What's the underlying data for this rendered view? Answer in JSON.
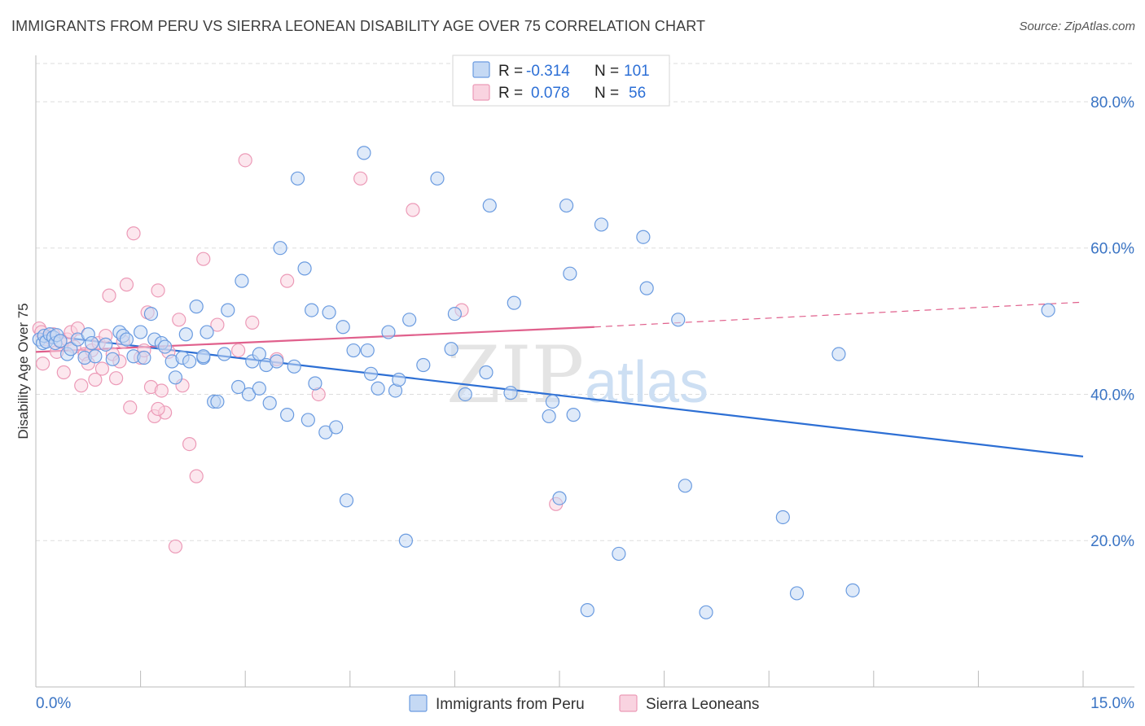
{
  "title": "IMMIGRANTS FROM PERU VS SIERRA LEONEAN DISABILITY AGE OVER 75 CORRELATION CHART",
  "source": "Source: ZipAtlas.com",
  "watermark": {
    "zip": "ZIP",
    "atlas": "atlas"
  },
  "legend": {
    "rows": [
      {
        "r_label": "R =",
        "r_value": "-0.314",
        "n_label": "N =",
        "n_value": "101"
      },
      {
        "r_label": "R =",
        "r_value": "0.078",
        "n_label": "N =",
        "n_value": "56"
      }
    ]
  },
  "colors": {
    "blue": "#6a9be0",
    "blue_fill": "#c5d9f4",
    "blue_line": "#2d6fd4",
    "pink": "#ec9ab7",
    "pink_fill": "#f9d3e0",
    "pink_line": "#e0608c",
    "axis_text": "#3a74c4",
    "grid": "#dddddd"
  },
  "chart_data": {
    "type": "scatter",
    "title": "IMMIGRANTS FROM PERU VS SIERRA LEONEAN DISABILITY AGE OVER 75 CORRELATION CHART",
    "xlabel": "",
    "ylabel": "Disability Age Over 75",
    "xlim": [
      0,
      15
    ],
    "ylim": [
      0,
      85
    ],
    "x_tick_labels": [
      "0.0%",
      "15.0%"
    ],
    "y_ticks": [
      20,
      40,
      60,
      80
    ],
    "y_tick_labels": [
      "20.0%",
      "40.0%",
      "60.0%",
      "80.0%"
    ],
    "grid": true,
    "legend_position": "top-center",
    "series": [
      {
        "name": "Immigrants from Peru",
        "color": "#6a9be0",
        "points": [
          [
            0.05,
            47.5
          ],
          [
            0.1,
            47.0
          ],
          [
            0.12,
            48.0
          ],
          [
            0.15,
            47.2
          ],
          [
            0.2,
            48.2
          ],
          [
            0.25,
            47.8
          ],
          [
            0.28,
            47.0
          ],
          [
            0.3,
            48.1
          ],
          [
            0.35,
            47.3
          ],
          [
            0.45,
            45.5
          ],
          [
            0.5,
            46.2
          ],
          [
            0.6,
            47.5
          ],
          [
            0.7,
            45.0
          ],
          [
            0.75,
            48.2
          ],
          [
            0.8,
            47.0
          ],
          [
            0.85,
            45.2
          ],
          [
            1.0,
            46.8
          ],
          [
            1.1,
            44.8
          ],
          [
            1.2,
            48.5
          ],
          [
            1.25,
            48.0
          ],
          [
            1.3,
            47.5
          ],
          [
            1.4,
            45.2
          ],
          [
            1.5,
            48.5
          ],
          [
            1.55,
            45.0
          ],
          [
            1.65,
            51.0
          ],
          [
            1.7,
            47.5
          ],
          [
            1.8,
            47.0
          ],
          [
            1.85,
            46.5
          ],
          [
            1.95,
            44.5
          ],
          [
            2.0,
            42.3
          ],
          [
            2.1,
            45.0
          ],
          [
            2.15,
            48.2
          ],
          [
            2.2,
            44.5
          ],
          [
            2.3,
            52.0
          ],
          [
            2.4,
            45.0
          ],
          [
            2.45,
            48.5
          ],
          [
            2.55,
            39.0
          ],
          [
            2.6,
            39.0
          ],
          [
            2.7,
            45.5
          ],
          [
            2.75,
            51.5
          ],
          [
            2.9,
            41.0
          ],
          [
            2.95,
            55.5
          ],
          [
            3.05,
            40.0
          ],
          [
            3.1,
            44.5
          ],
          [
            3.2,
            45.5
          ],
          [
            3.3,
            44.0
          ],
          [
            3.35,
            38.8
          ],
          [
            3.45,
            44.5
          ],
          [
            3.5,
            60.0
          ],
          [
            3.6,
            37.2
          ],
          [
            3.7,
            43.8
          ],
          [
            3.75,
            69.5
          ],
          [
            3.85,
            57.2
          ],
          [
            3.9,
            36.5
          ],
          [
            3.95,
            51.5
          ],
          [
            4.0,
            41.5
          ],
          [
            4.15,
            34.8
          ],
          [
            4.2,
            51.2
          ],
          [
            4.3,
            35.5
          ],
          [
            4.4,
            49.2
          ],
          [
            4.45,
            25.5
          ],
          [
            4.55,
            46.0
          ],
          [
            4.7,
            73.0
          ],
          [
            4.75,
            46.0
          ],
          [
            4.8,
            42.8
          ],
          [
            4.9,
            40.8
          ],
          [
            5.05,
            48.5
          ],
          [
            5.15,
            40.5
          ],
          [
            5.2,
            42.0
          ],
          [
            5.3,
            20.0
          ],
          [
            5.35,
            50.2
          ],
          [
            5.55,
            44.0
          ],
          [
            5.75,
            69.5
          ],
          [
            5.95,
            46.2
          ],
          [
            6.0,
            51.0
          ],
          [
            6.15,
            40.0
          ],
          [
            6.45,
            43.0
          ],
          [
            6.5,
            65.8
          ],
          [
            6.8,
            40.2
          ],
          [
            6.85,
            52.5
          ],
          [
            7.35,
            37.0
          ],
          [
            7.4,
            39.0
          ],
          [
            7.5,
            25.8
          ],
          [
            7.6,
            65.8
          ],
          [
            7.65,
            56.5
          ],
          [
            7.7,
            37.2
          ],
          [
            7.9,
            10.5
          ],
          [
            8.1,
            63.2
          ],
          [
            8.35,
            18.2
          ],
          [
            8.7,
            61.5
          ],
          [
            8.75,
            54.5
          ],
          [
            9.2,
            50.2
          ],
          [
            9.3,
            27.5
          ],
          [
            9.6,
            10.2
          ],
          [
            10.7,
            23.2
          ],
          [
            10.9,
            12.8
          ],
          [
            11.5,
            45.5
          ],
          [
            11.7,
            13.2
          ],
          [
            14.5,
            51.5
          ],
          [
            2.4,
            45.2
          ],
          [
            3.2,
            40.8
          ]
        ],
        "trend": [
          [
            0,
            48.2
          ],
          [
            15,
            31.5
          ]
        ]
      },
      {
        "name": "Sierra Leoneans",
        "color": "#ec9ab7",
        "points": [
          [
            0.05,
            49.0
          ],
          [
            0.08,
            48.5
          ],
          [
            0.1,
            44.2
          ],
          [
            0.15,
            47.5
          ],
          [
            0.2,
            47.8
          ],
          [
            0.25,
            48.2
          ],
          [
            0.3,
            45.8
          ],
          [
            0.35,
            47.2
          ],
          [
            0.4,
            43.0
          ],
          [
            0.45,
            47.5
          ],
          [
            0.5,
            48.5
          ],
          [
            0.55,
            46.5
          ],
          [
            0.6,
            49.0
          ],
          [
            0.65,
            41.2
          ],
          [
            0.7,
            45.5
          ],
          [
            0.75,
            44.2
          ],
          [
            0.8,
            46.0
          ],
          [
            0.85,
            42.0
          ],
          [
            0.9,
            47.0
          ],
          [
            0.95,
            43.5
          ],
          [
            1.0,
            48.0
          ],
          [
            1.05,
            53.5
          ],
          [
            1.1,
            45.5
          ],
          [
            1.15,
            42.2
          ],
          [
            1.2,
            44.5
          ],
          [
            1.25,
            47.2
          ],
          [
            1.3,
            55.0
          ],
          [
            1.35,
            38.2
          ],
          [
            1.4,
            62.0
          ],
          [
            1.5,
            45.0
          ],
          [
            1.55,
            46.0
          ],
          [
            1.6,
            51.2
          ],
          [
            1.65,
            41.0
          ],
          [
            1.7,
            37.0
          ],
          [
            1.75,
            54.2
          ],
          [
            1.8,
            40.5
          ],
          [
            1.85,
            37.5
          ],
          [
            1.9,
            45.8
          ],
          [
            2.0,
            19.2
          ],
          [
            2.05,
            50.2
          ],
          [
            2.1,
            41.2
          ],
          [
            2.2,
            33.2
          ],
          [
            2.3,
            28.8
          ],
          [
            2.4,
            58.5
          ],
          [
            2.6,
            49.5
          ],
          [
            2.9,
            46.0
          ],
          [
            3.0,
            72.0
          ],
          [
            3.1,
            49.8
          ],
          [
            3.45,
            44.8
          ],
          [
            3.6,
            55.5
          ],
          [
            4.05,
            40.0
          ],
          [
            4.65,
            69.5
          ],
          [
            5.4,
            65.2
          ],
          [
            6.1,
            51.5
          ],
          [
            7.45,
            25.0
          ],
          [
            1.75,
            38.0
          ]
        ],
        "trend_solid": [
          [
            0,
            45.8
          ],
          [
            8.0,
            49.2
          ]
        ],
        "trend_dashed": [
          [
            8.0,
            49.2
          ],
          [
            15,
            52.6
          ]
        ]
      }
    ]
  },
  "bottom_legend": [
    {
      "label": "Immigrants from Peru",
      "color": "blue"
    },
    {
      "label": "Sierra Leoneans",
      "color": "pink"
    }
  ]
}
